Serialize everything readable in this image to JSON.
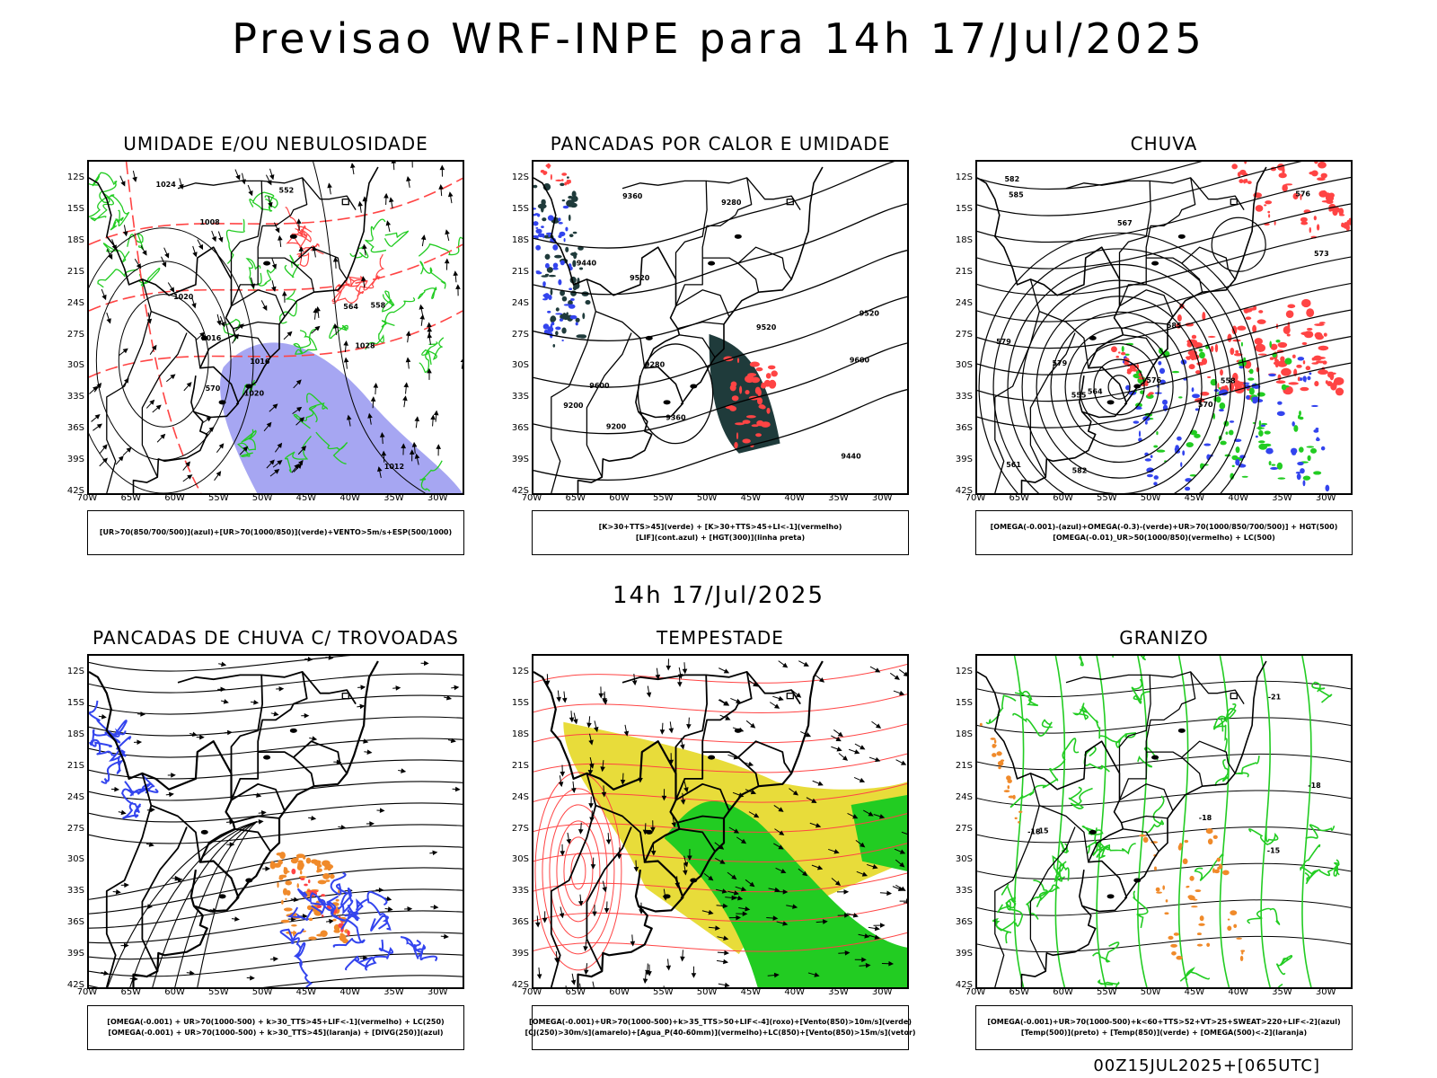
{
  "title": "Previsao WRF-INPE  para 14h 17/Jul/2025",
  "mid_title": "14h 17/Jul/2025",
  "footer": "00Z15JUL2025+[065UTC]",
  "lat_labels": [
    "12S",
    "15S",
    "18S",
    "21S",
    "24S",
    "27S",
    "30S",
    "33S",
    "36S",
    "39S",
    "42S"
  ],
  "lon_labels": [
    "70W",
    "65W",
    "60W",
    "55W",
    "50W",
    "45W",
    "40W",
    "35W",
    "30W"
  ],
  "colors": {
    "red": "#ff4444",
    "green": "#22cc22",
    "blue": "#3344ee",
    "purple_fill": "#8888ee",
    "dark": "#1f3b3b",
    "yellow": "#e8dc3a",
    "orange": "#f08a2a"
  },
  "panels": [
    {
      "title": "UMIDADE E/OU NEBULOSIDADE",
      "legend": [
        "[UR>70(850/700/500)](azul)+[UR>70(1000/850)](verde)+VENTO>5m/s+ESP(500/1000)"
      ],
      "contour_labels": [
        "1016",
        "1020",
        "1024",
        "1028",
        "1012",
        "1008",
        "1020",
        "1016",
        "570",
        "564",
        "558",
        "552"
      ]
    },
    {
      "title": "PANCADAS POR CALOR E UMIDADE",
      "legend": [
        "[K>30+TTS>45](verde)  +  [K>30+TTS>45+LI<-1](vermelho)",
        "[LIF](cont.azul)  +  [HGT(300)](linha preta)"
      ],
      "contour_labels": [
        "9520",
        "9600",
        "9440",
        "9360",
        "9600",
        "9520",
        "9440",
        "9280",
        "9200",
        "9360",
        "9280",
        "9200",
        "9520"
      ]
    },
    {
      "title": "CHUVA",
      "legend": [
        "[OMEGA(-0.001)-(azul)+OMEGA(-0.3)-(verde)+UR>70(1000/850/700/500)]  +  HGT(500)",
        "[OMEGA(-0.01)_UR>50(1000/850)(vermelho)  +  LC(500)"
      ],
      "contour_labels": [
        "585",
        "582",
        "579",
        "576",
        "573",
        "570",
        "567",
        "564",
        "561",
        "558",
        "555",
        "585",
        "582",
        "579",
        "576"
      ]
    },
    {
      "title": "PANCADAS DE CHUVA C/ TROVOADAS",
      "legend": [
        "[OMEGA(-0.001)  +  UR>70(1000-500)  +  k>30_TTS>45+LIF<-1](vermelho)  +  LC(250)",
        "[OMEGA(-0.001)  +  UR>70(1000-500)  +  k>30_TTS>45](laranja)  +  [DIVG(250)](azul)"
      ],
      "contour_labels": []
    },
    {
      "title": "TEMPESTADE",
      "legend": [
        "[OMEGA(-0.001)+UR>70(1000-500)+k>35_TTS>50+LIF<-4](roxo)+[Vento(850)>10m/s](verde)",
        "[CJ(250)>30m/s](amarelo)+[Agua_P(40-60mm)](vermelho)+LC(850)+[Vento(850)>15m/s](vetor)"
      ],
      "contour_labels": []
    },
    {
      "title": "GRANIZO",
      "legend": [
        "[OMEGA(-0.001)+UR>70(1000-500)+k<60+TTS>52+VT>25+SWEAT>220+LIF<-2](azul)",
        "[Temp(500)](preto)  +  [Temp(850)](verde)  +  [OMEGA(500)<-2](laranja)"
      ],
      "contour_labels": [
        "-18",
        "-15",
        "-21",
        "-18",
        "-15",
        "-18"
      ]
    }
  ]
}
